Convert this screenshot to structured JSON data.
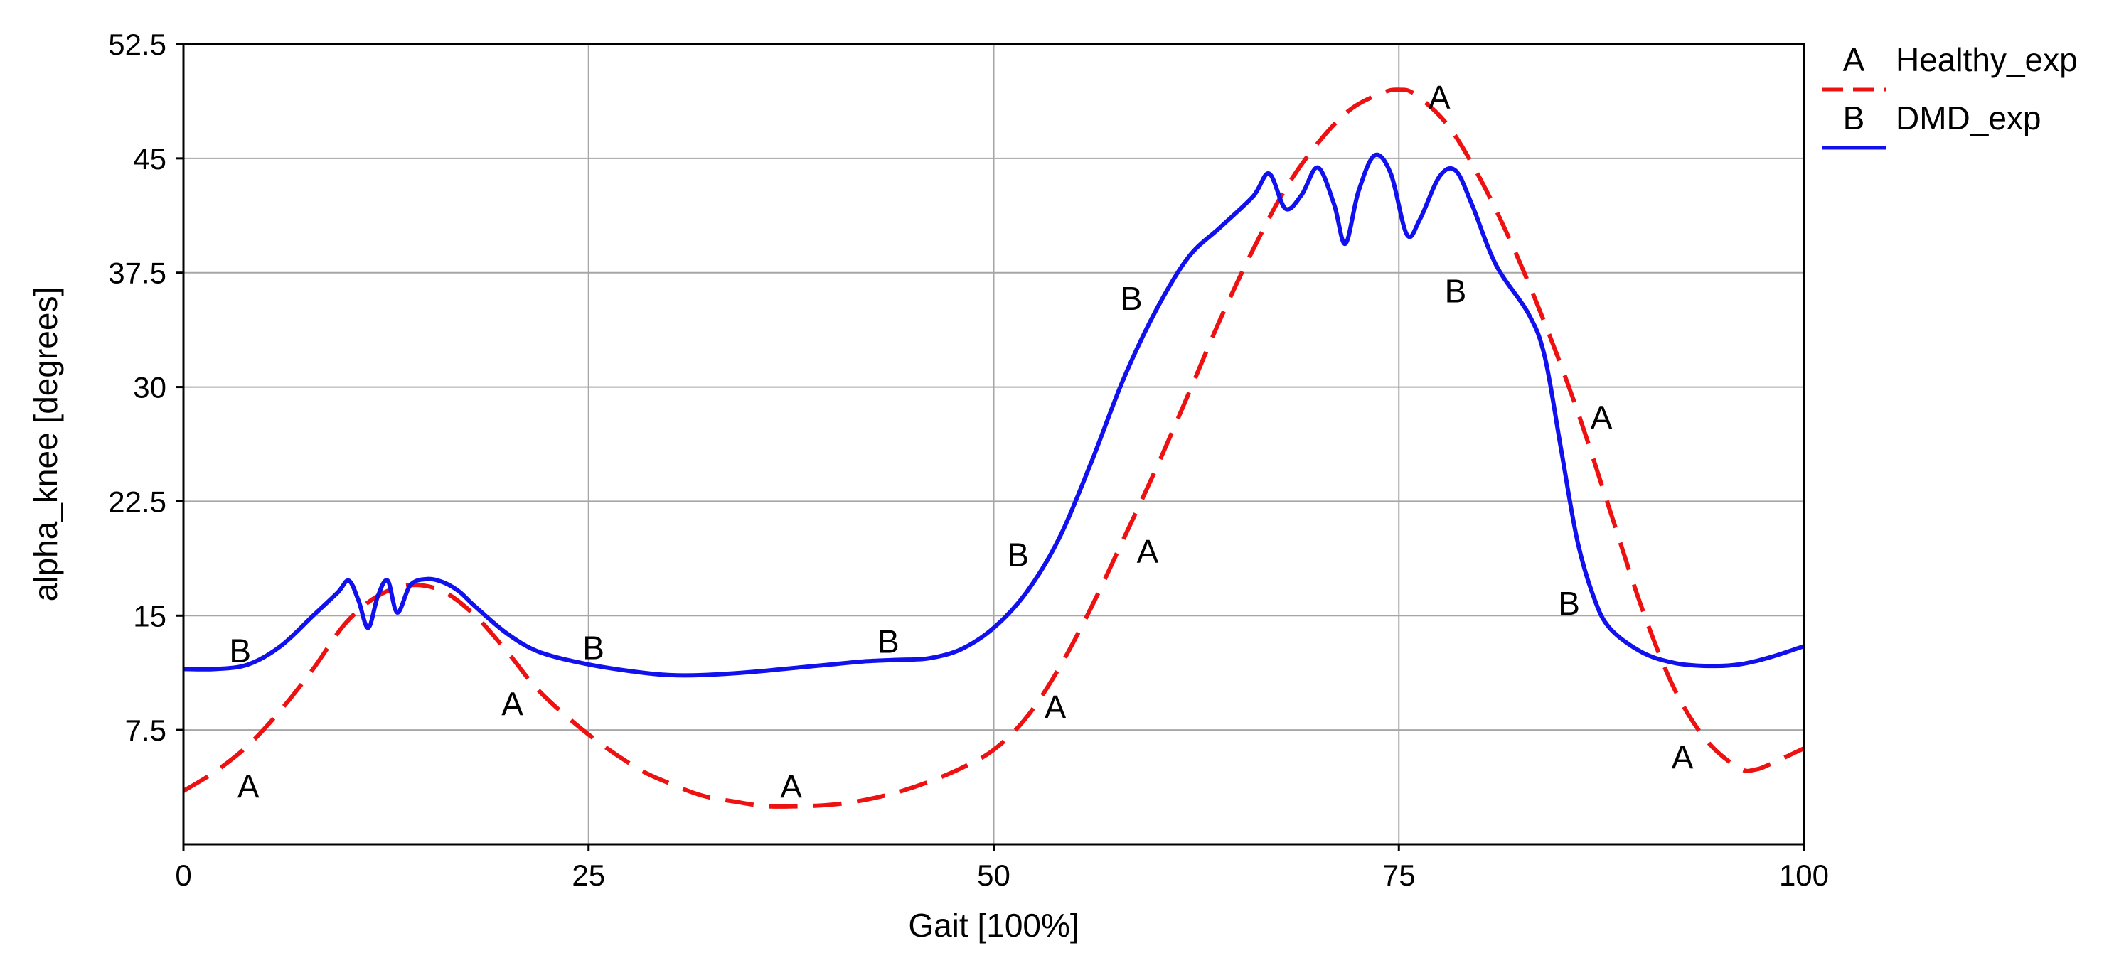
{
  "chart_data": {
    "type": "line",
    "title": "",
    "xlabel": "Gait [100%]",
    "ylabel": "alpha_knee [degrees]",
    "xlim": [
      0,
      100
    ],
    "ylim": [
      0,
      52.5
    ],
    "grid": true,
    "legend_position": "top-right outside",
    "x_ticks": [
      0,
      25,
      50,
      75,
      100
    ],
    "x_tick_labels": [
      "0",
      "25",
      "50",
      "75",
      "100"
    ],
    "y_ticks": [
      7.5,
      15,
      22.5,
      30,
      37.5,
      45,
      52.5
    ],
    "y_tick_labels": [
      "7.5",
      "15",
      "22.5",
      "30",
      "37.5",
      "45",
      "52.5"
    ],
    "series": [
      {
        "name": "Healthy_exp",
        "marker": "A",
        "color": "#ee1111",
        "style": "dashed",
        "x": [
          0,
          2,
          4,
          6,
          8,
          10,
          12,
          14,
          16,
          18,
          20,
          22,
          25,
          28,
          30,
          32,
          34,
          36,
          38,
          40,
          42,
          44,
          46,
          48,
          50,
          52,
          54,
          56,
          58,
          60,
          62,
          64,
          66,
          68,
          70,
          72,
          74,
          75,
          76,
          78,
          80,
          82,
          84,
          86,
          88,
          90,
          92,
          94,
          96,
          97,
          98,
          100
        ],
        "y": [
          3.5,
          4.8,
          6.5,
          8.8,
          11.5,
          14.5,
          16.3,
          17.0,
          16.6,
          15.0,
          12.6,
          10.0,
          7.2,
          5.0,
          4.0,
          3.2,
          2.8,
          2.5,
          2.5,
          2.6,
          2.9,
          3.4,
          4.1,
          5.0,
          6.2,
          8.3,
          11.5,
          15.5,
          20.0,
          24.6,
          29.5,
          34.5,
          39.0,
          43.0,
          46.0,
          48.2,
          49.3,
          49.5,
          49.2,
          47.2,
          43.7,
          39.3,
          34.2,
          28.5,
          22.0,
          15.5,
          10.2,
          6.8,
          5.0,
          4.9,
          5.3,
          6.3
        ]
      },
      {
        "name": "DMD_exp",
        "marker": "B",
        "color": "#1111ee",
        "style": "solid",
        "x": [
          0,
          2,
          4,
          6,
          8,
          9.5,
          10.2,
          10.8,
          11.4,
          12.0,
          12.6,
          13.2,
          14.0,
          15.0,
          16.0,
          17.0,
          18.0,
          20,
          22,
          25,
          28,
          30,
          32,
          35,
          38,
          40,
          42,
          44,
          46,
          48,
          50,
          52,
          54,
          56,
          58,
          60,
          62,
          64,
          66,
          67,
          68,
          69,
          70,
          71,
          71.7,
          72.5,
          73.5,
          74.5,
          75.5,
          76.3,
          77.5,
          78.5,
          79.5,
          81,
          83,
          84,
          85,
          86,
          87,
          88,
          90,
          92,
          94,
          96,
          98,
          100
        ],
        "y": [
          11.5,
          11.5,
          11.8,
          13.0,
          15.0,
          16.5,
          17.3,
          16.0,
          14.2,
          16.3,
          17.3,
          15.2,
          17.0,
          17.4,
          17.2,
          16.6,
          15.6,
          13.8,
          12.6,
          11.8,
          11.3,
          11.1,
          11.1,
          11.3,
          11.6,
          11.8,
          12.0,
          12.1,
          12.2,
          12.8,
          14.2,
          16.5,
          20.0,
          25.0,
          30.5,
          35.0,
          38.5,
          40.5,
          42.5,
          44.0,
          41.7,
          42.6,
          44.4,
          42.0,
          39.4,
          42.8,
          45.2,
          44.0,
          40.0,
          41.0,
          43.8,
          44.2,
          42.0,
          38.0,
          34.8,
          32.0,
          26.0,
          20.0,
          16.3,
          14.2,
          12.6,
          11.9,
          11.7,
          11.8,
          12.3,
          13.0
        ]
      }
    ],
    "point_labels": [
      {
        "text": "A",
        "x": 4.0,
        "y": 3.8
      },
      {
        "text": "A",
        "x": 20.3,
        "y": 9.2
      },
      {
        "text": "A",
        "x": 37.5,
        "y": 3.8
      },
      {
        "text": "A",
        "x": 53.8,
        "y": 9.0
      },
      {
        "text": "A",
        "x": 59.5,
        "y": 19.2
      },
      {
        "text": "A",
        "x": 77.5,
        "y": 49.0
      },
      {
        "text": "A",
        "x": 87.5,
        "y": 28.0
      },
      {
        "text": "A",
        "x": 92.5,
        "y": 5.7
      },
      {
        "text": "B",
        "x": 3.5,
        "y": 12.7
      },
      {
        "text": "B",
        "x": 25.3,
        "y": 12.9
      },
      {
        "text": "B",
        "x": 43.5,
        "y": 13.3
      },
      {
        "text": "B",
        "x": 51.5,
        "y": 19.0
      },
      {
        "text": "B",
        "x": 58.5,
        "y": 35.8
      },
      {
        "text": "B",
        "x": 78.5,
        "y": 36.3
      },
      {
        "text": "B",
        "x": 85.5,
        "y": 15.8
      }
    ]
  }
}
